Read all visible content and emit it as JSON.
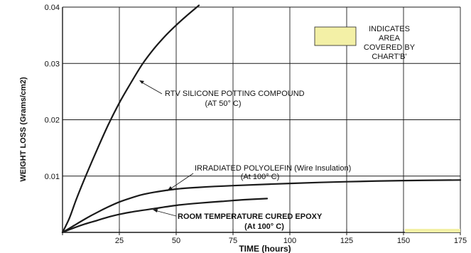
{
  "chart_data": {
    "type": "line",
    "xlabel": "TIME (hours)",
    "ylabel": "WEIGHT LOSS (Grams/cm2)",
    "xlim": [
      0,
      175
    ],
    "ylim": [
      0,
      0.04
    ],
    "x_ticks": [
      {
        "value": 0,
        "label": ""
      },
      {
        "value": 25,
        "label": "25"
      },
      {
        "value": 50,
        "label": "50"
      },
      {
        "value": 75,
        "label": "75"
      },
      {
        "value": 100,
        "label": "100"
      },
      {
        "value": 125,
        "label": "125"
      },
      {
        "value": 150,
        "label": "150"
      },
      {
        "value": 175,
        "label": "175"
      }
    ],
    "y_ticks": [
      {
        "value": 0,
        "label": ""
      },
      {
        "value": 0.01,
        "label": "0.01"
      },
      {
        "value": 0.02,
        "label": "0.02"
      },
      {
        "value": 0.03,
        "label": "0.03"
      },
      {
        "value": 0.04,
        "label": "0.04"
      }
    ],
    "grid": true,
    "series": [
      {
        "key": "rtv",
        "x": [
          0,
          3,
          6,
          10,
          15,
          20,
          25,
          30,
          35,
          40,
          45,
          50,
          55,
          60
        ],
        "y": [
          0,
          0.0025,
          0.0058,
          0.0098,
          0.0145,
          0.019,
          0.023,
          0.0265,
          0.0298,
          0.0325,
          0.0348,
          0.0368,
          0.0386,
          0.0403
        ]
      },
      {
        "key": "polyolefin",
        "x": [
          0,
          5,
          10,
          15,
          20,
          25,
          30,
          35,
          40,
          50,
          60,
          75,
          100,
          125,
          150,
          175
        ],
        "y": [
          0,
          0.0012,
          0.0024,
          0.0035,
          0.0045,
          0.0054,
          0.0061,
          0.0067,
          0.0071,
          0.0077,
          0.008,
          0.0083,
          0.0087,
          0.009,
          0.0092,
          0.0093
        ]
      },
      {
        "key": "epoxy",
        "x": [
          0,
          5,
          10,
          15,
          20,
          25,
          30,
          40,
          50,
          60,
          70,
          80,
          90
        ],
        "y": [
          0,
          0.0008,
          0.0015,
          0.0021,
          0.0027,
          0.0032,
          0.0036,
          0.0042,
          0.0048,
          0.0052,
          0.0055,
          0.0058,
          0.006
        ]
      }
    ],
    "annotations": {
      "rtv": [
        "RTV SILICONE POTTING COMPOUND",
        "(AT 50° C)"
      ],
      "polyolefin": [
        "IRRADIATED POLYOLEFIN (Wire Insulation)",
        "(At 100° C)"
      ],
      "epoxy": [
        "ROOM TEMPERATURE CURED EPOXY",
        "(At 100° C)"
      ],
      "legend": [
        "INDICATES",
        "AREA",
        "COVERED BY",
        "CHART'B'"
      ]
    },
    "colors": {
      "line": "#1a1a1a",
      "grid": "#1a1a1a",
      "chart_b_area": "#f3f0a6"
    }
  }
}
